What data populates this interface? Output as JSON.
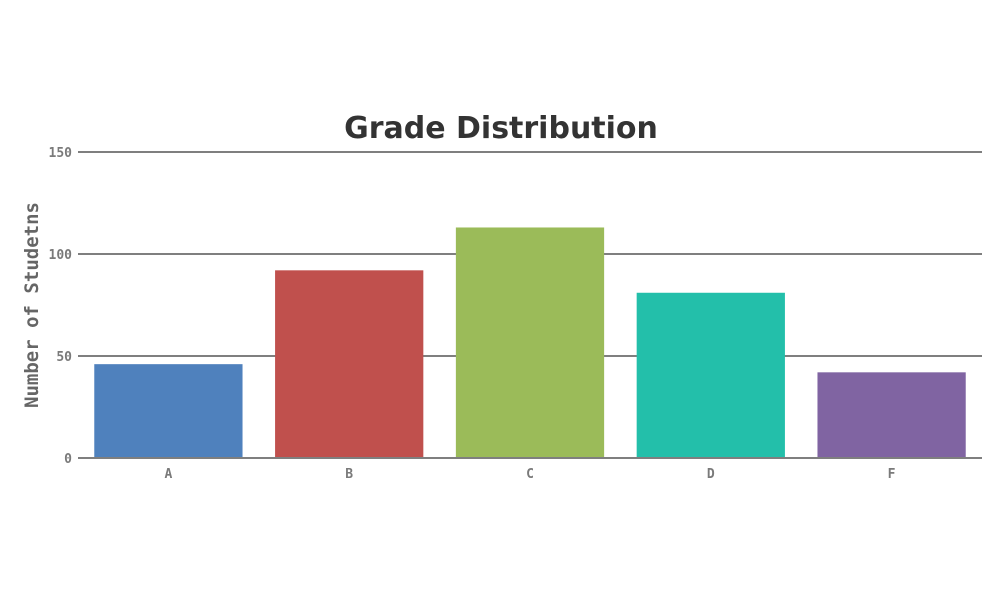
{
  "chart_data": {
    "type": "bar",
    "title": "Grade Distribution",
    "xlabel": "",
    "ylabel": "Number of Studetns",
    "categories": [
      "A",
      "B",
      "C",
      "D",
      "F"
    ],
    "values": [
      46,
      92,
      113,
      81,
      42
    ],
    "colors": [
      "#4f81bd",
      "#c0504d",
      "#9bbb59",
      "#23bfaa",
      "#8064a2"
    ],
    "ylim": [
      0,
      150
    ],
    "yticks": [
      0,
      50,
      100,
      150
    ],
    "grid": true,
    "legend": "none"
  }
}
